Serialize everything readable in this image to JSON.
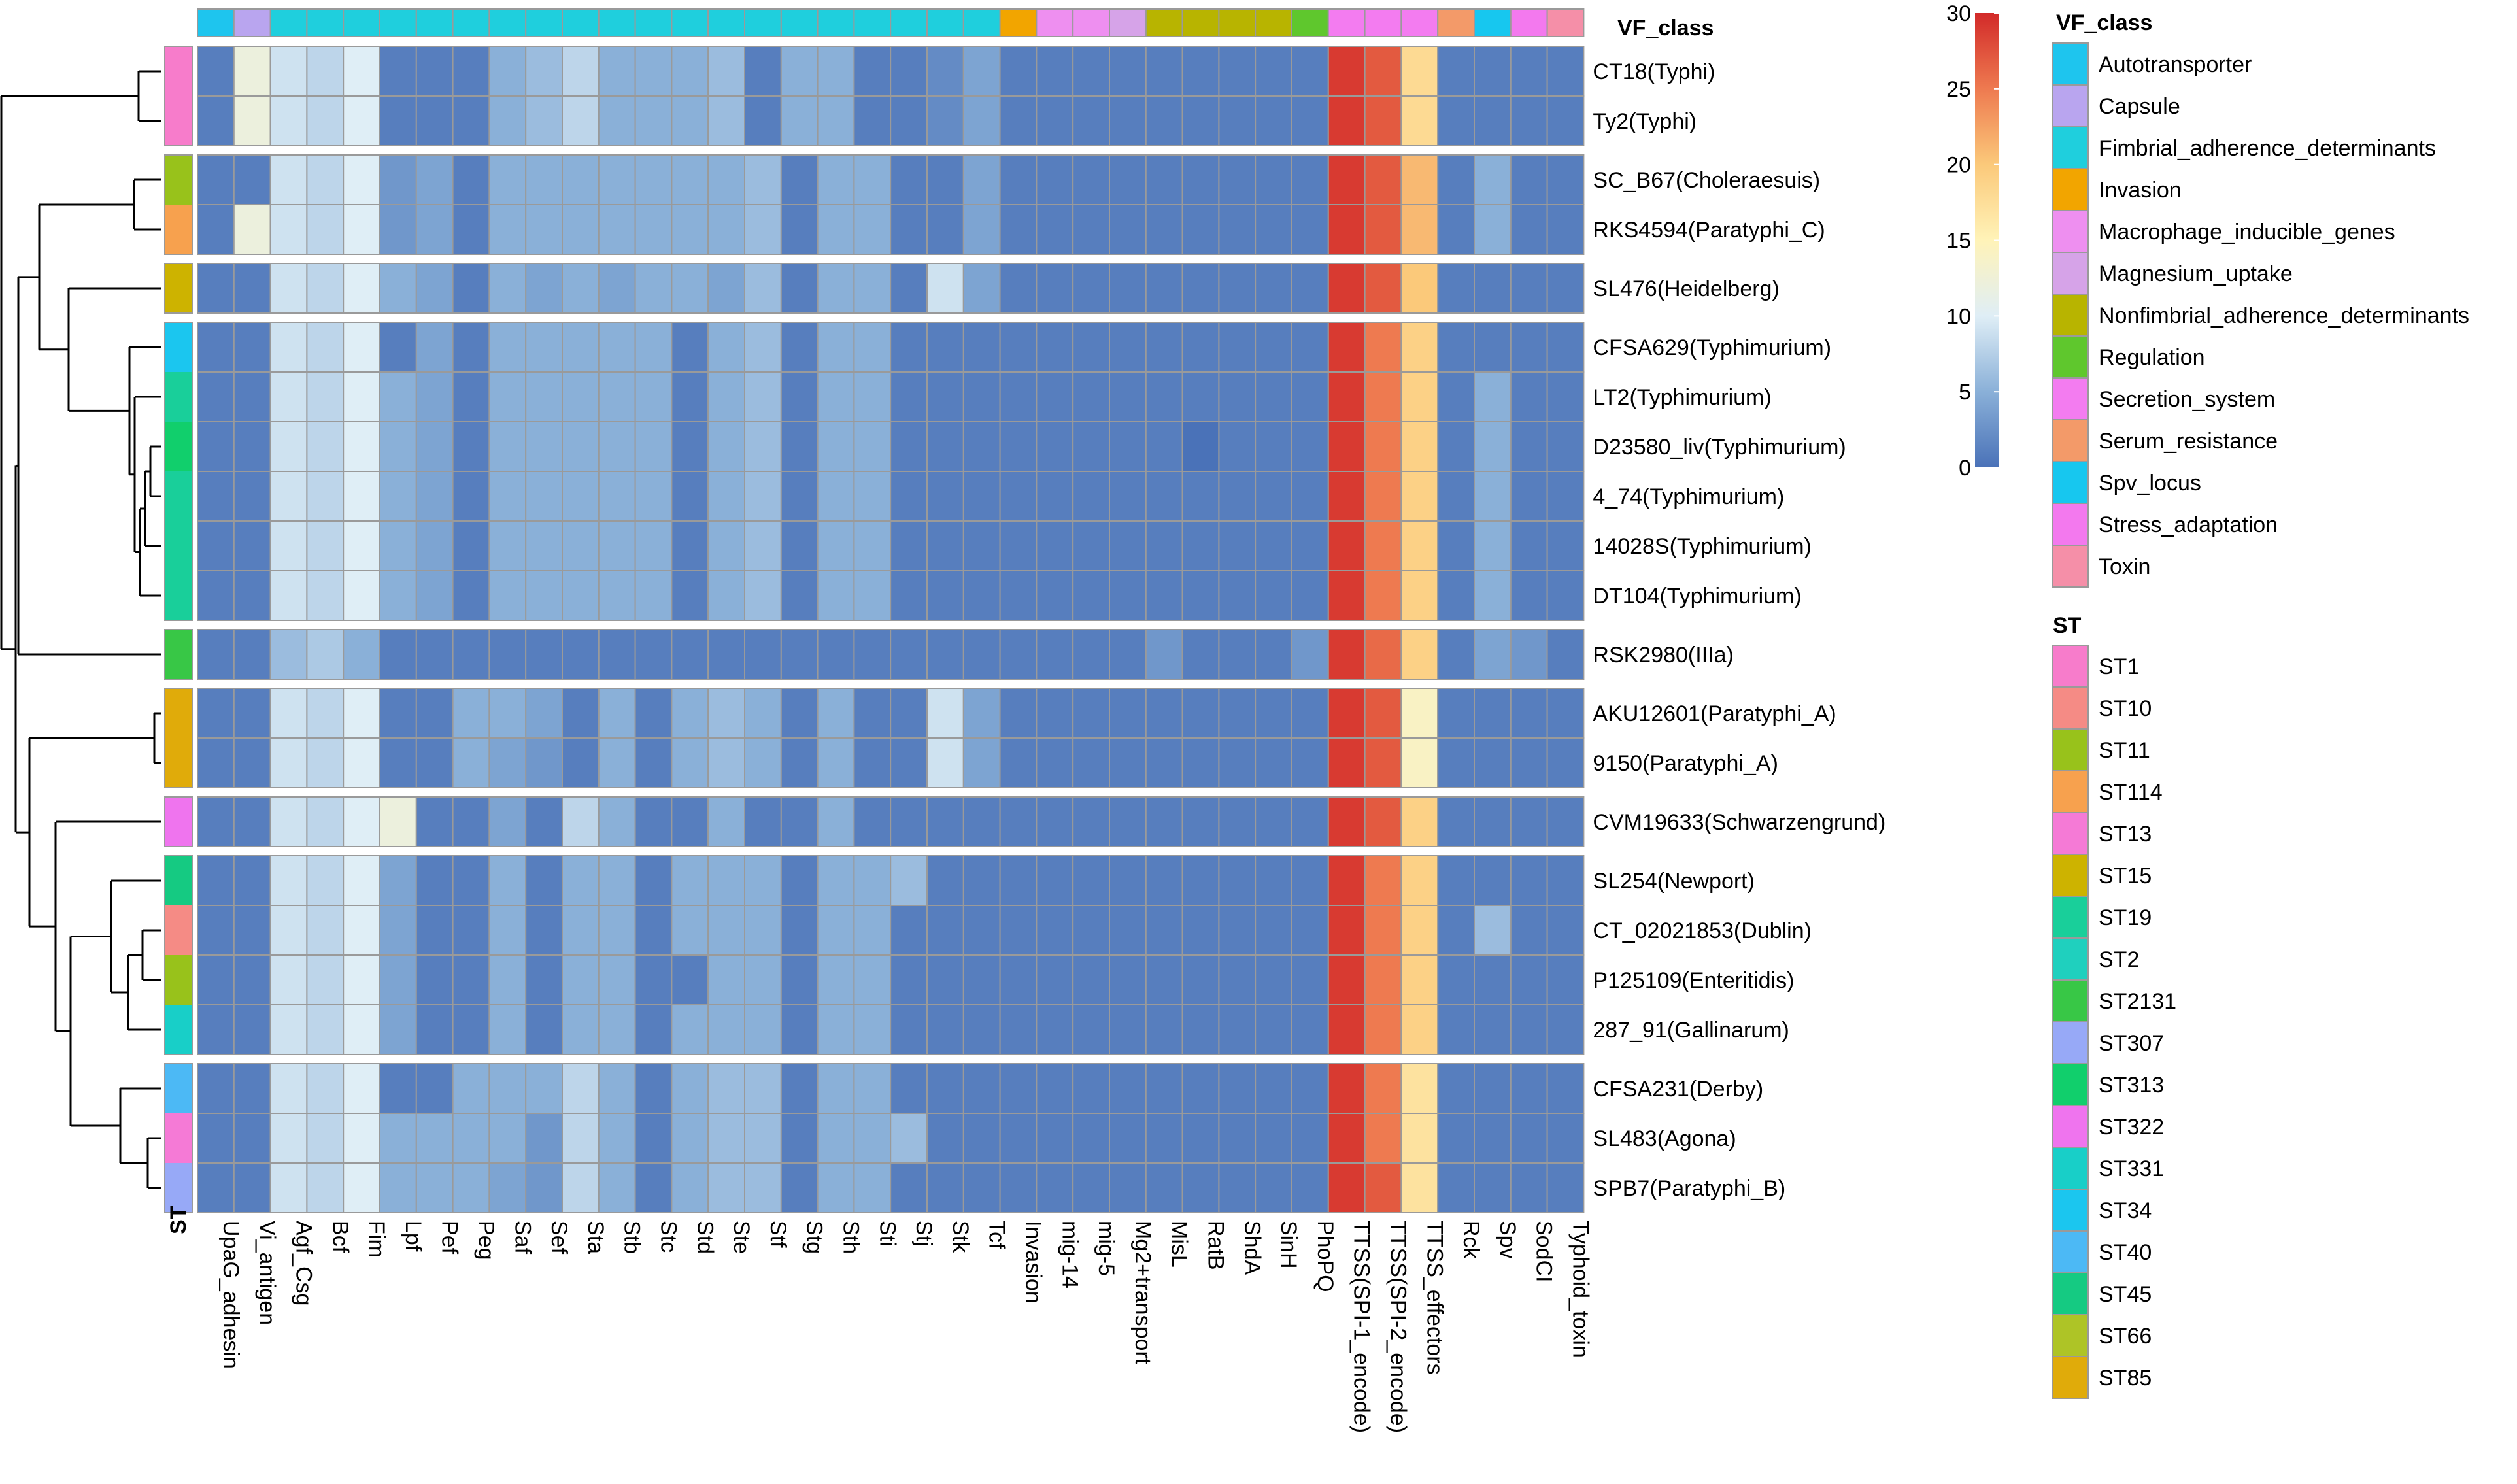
{
  "chart_data": {
    "type": "heatmap",
    "title": "",
    "color_scale": {
      "min": 0,
      "max": 30,
      "ticks": [
        "0",
        "5",
        "10",
        "15",
        "20",
        "25",
        "30"
      ],
      "stops": [
        {
          "value": 0,
          "color": "#4a72b8"
        },
        {
          "value": 5,
          "color": "#8ab0d8"
        },
        {
          "value": 10,
          "color": "#dfeef6"
        },
        {
          "value": 15,
          "color": "#fff3b8"
        },
        {
          "value": 20,
          "color": "#fbc97a"
        },
        {
          "value": 25,
          "color": "#ee7a50"
        },
        {
          "value": 30,
          "color": "#d22a29"
        }
      ]
    },
    "columns": [
      "UpaG_adhesin",
      "Vi_antigen",
      "Agf_Csg",
      "Bcf",
      "Fim",
      "Lpf",
      "Pef",
      "Peg",
      "Saf",
      "Sef",
      "Sta",
      "Stb",
      "Stc",
      "Std",
      "Ste",
      "Stf",
      "Stg",
      "Sth",
      "Sti",
      "Stj",
      "Stk",
      "Tcf",
      "Invasion",
      "mig-14",
      "mig-5",
      "Mg2+transport",
      "MisL",
      "RatB",
      "ShdA",
      "SinH",
      "PhoPQ",
      "TTSS(SPI-1_encode)",
      "TTSS(SPI-2_encode)",
      "TTSS_effectors",
      "Rck",
      "Spv",
      "SodCI",
      "Typhoid_toxin"
    ],
    "column_class": [
      "Autotransporter",
      "Capsule",
      "Fimbrial_adherence_determinants",
      "Fimbrial_adherence_determinants",
      "Fimbrial_adherence_determinants",
      "Fimbrial_adherence_determinants",
      "Fimbrial_adherence_determinants",
      "Fimbrial_adherence_determinants",
      "Fimbrial_adherence_determinants",
      "Fimbrial_adherence_determinants",
      "Fimbrial_adherence_determinants",
      "Fimbrial_adherence_determinants",
      "Fimbrial_adherence_determinants",
      "Fimbrial_adherence_determinants",
      "Fimbrial_adherence_determinants",
      "Fimbrial_adherence_determinants",
      "Fimbrial_adherence_determinants",
      "Fimbrial_adherence_determinants",
      "Fimbrial_adherence_determinants",
      "Fimbrial_adherence_determinants",
      "Fimbrial_adherence_determinants",
      "Fimbrial_adherence_determinants",
      "Invasion",
      "Macrophage_inducible_genes",
      "Macrophage_inducible_genes",
      "Magnesium_uptake",
      "Nonfimbrial_adherence_determinants",
      "Nonfimbrial_adherence_determinants",
      "Nonfimbrial_adherence_determinants",
      "Nonfimbrial_adherence_determinants",
      "Regulation",
      "Secretion_system",
      "Secretion_system",
      "Secretion_system",
      "Serum_resistance",
      "Spv_locus",
      "Stress_adaptation",
      "Toxin"
    ],
    "column_annotation_title": "VF_class",
    "row_annotation_title": "ST",
    "rows": [
      {
        "name": "CT18(Typhi)",
        "st": "ST1",
        "group": 1,
        "values": [
          1,
          12,
          9,
          8,
          10,
          1,
          1,
          1,
          5,
          6,
          8,
          5,
          5,
          5,
          6,
          1,
          5,
          5,
          1,
          1,
          2,
          4,
          1,
          1,
          1,
          1,
          1,
          1,
          1,
          1,
          1,
          29,
          27,
          18,
          1,
          1,
          1,
          1
        ]
      },
      {
        "name": "Ty2(Typhi)",
        "st": "ST1",
        "group": 1,
        "values": [
          1,
          12,
          9,
          8,
          10,
          1,
          1,
          1,
          5,
          6,
          8,
          5,
          5,
          5,
          6,
          1,
          5,
          5,
          1,
          1,
          2,
          4,
          1,
          1,
          1,
          1,
          1,
          1,
          1,
          1,
          1,
          29,
          27,
          18,
          1,
          1,
          1,
          1
        ]
      },
      {
        "name": "SC_B67(Choleraesuis)",
        "st": "ST11",
        "group": 2,
        "values": [
          1,
          1,
          9,
          8,
          10,
          3,
          4,
          1,
          5,
          5,
          5,
          5,
          5,
          5,
          5,
          6,
          1,
          5,
          5,
          1,
          1,
          4,
          1,
          1,
          1,
          1,
          1,
          1,
          1,
          1,
          1,
          29,
          27,
          21,
          1,
          5,
          1,
          1
        ]
      },
      {
        "name": "RKS4594(Paratyphi_C)",
        "st": "ST114",
        "group": 2,
        "values": [
          1,
          12,
          9,
          8,
          10,
          3,
          4,
          1,
          5,
          5,
          5,
          5,
          5,
          5,
          5,
          6,
          1,
          5,
          5,
          1,
          1,
          4,
          1,
          1,
          1,
          1,
          1,
          1,
          1,
          1,
          1,
          29,
          27,
          21,
          1,
          5,
          1,
          1
        ]
      },
      {
        "name": "SL476(Heidelberg)",
        "st": "ST15",
        "group": 3,
        "values": [
          1,
          1,
          9,
          8,
          10,
          5,
          4,
          1,
          5,
          4,
          5,
          4,
          5,
          5,
          4,
          6,
          1,
          5,
          5,
          1,
          9,
          4,
          1,
          1,
          1,
          1,
          1,
          1,
          1,
          1,
          1,
          29,
          27,
          20,
          1,
          1,
          1,
          1
        ]
      },
      {
        "name": "CFSA629(Typhimurium)",
        "st": "ST34",
        "group": 4,
        "values": [
          1,
          1,
          9,
          8,
          10,
          1,
          4,
          1,
          5,
          5,
          5,
          5,
          5,
          1,
          5,
          6,
          1,
          5,
          5,
          1,
          1,
          1,
          1,
          1,
          1,
          1,
          1,
          1,
          1,
          1,
          1,
          29,
          25,
          19,
          1,
          1,
          1,
          1
        ]
      },
      {
        "name": "LT2(Typhimurium)",
        "st": "ST19",
        "group": 4,
        "values": [
          1,
          1,
          9,
          8,
          10,
          5,
          4,
          1,
          5,
          5,
          5,
          5,
          5,
          1,
          5,
          6,
          1,
          5,
          5,
          1,
          1,
          1,
          1,
          1,
          1,
          1,
          1,
          1,
          1,
          1,
          1,
          29,
          25,
          19,
          1,
          5,
          1,
          1
        ]
      },
      {
        "name": "D23580_liv(Typhimurium)",
        "st": "ST313",
        "group": 4,
        "values": [
          1,
          1,
          9,
          8,
          10,
          5,
          4,
          1,
          5,
          5,
          5,
          5,
          5,
          1,
          5,
          6,
          1,
          5,
          5,
          1,
          1,
          1,
          1,
          1,
          1,
          1,
          1,
          0,
          1,
          1,
          1,
          29,
          25,
          19,
          1,
          5,
          1,
          1
        ]
      },
      {
        "name": "4_74(Typhimurium)",
        "st": "ST19",
        "group": 4,
        "values": [
          1,
          1,
          9,
          8,
          10,
          5,
          4,
          1,
          5,
          5,
          5,
          5,
          5,
          1,
          5,
          6,
          1,
          5,
          5,
          1,
          1,
          1,
          1,
          1,
          1,
          1,
          1,
          1,
          1,
          1,
          1,
          29,
          25,
          19,
          1,
          5,
          1,
          1
        ]
      },
      {
        "name": "14028S(Typhimurium)",
        "st": "ST19",
        "group": 4,
        "values": [
          1,
          1,
          9,
          8,
          10,
          5,
          4,
          1,
          5,
          5,
          5,
          5,
          5,
          1,
          5,
          6,
          1,
          5,
          5,
          1,
          1,
          1,
          1,
          1,
          1,
          1,
          1,
          1,
          1,
          1,
          1,
          29,
          25,
          19,
          1,
          5,
          1,
          1
        ]
      },
      {
        "name": "DT104(Typhimurium)",
        "st": "ST19",
        "group": 4,
        "values": [
          1,
          1,
          9,
          8,
          10,
          5,
          4,
          1,
          5,
          5,
          5,
          5,
          5,
          1,
          5,
          6,
          1,
          5,
          5,
          1,
          1,
          1,
          1,
          1,
          1,
          1,
          1,
          1,
          1,
          1,
          1,
          29,
          25,
          19,
          1,
          5,
          1,
          1
        ]
      },
      {
        "name": "RSK2980(IIIa)",
        "st": "ST2131",
        "group": 5,
        "values": [
          1,
          1,
          6,
          7,
          5,
          1,
          1,
          1,
          1,
          1,
          1,
          1,
          1,
          1,
          1,
          1,
          1,
          1,
          1,
          1,
          1,
          1,
          1,
          1,
          1,
          1,
          3,
          1,
          1,
          1,
          3,
          29,
          26,
          19,
          1,
          4,
          3,
          1
        ]
      },
      {
        "name": "AKU12601(Paratyphi_A)",
        "st": "ST85",
        "group": 6,
        "values": [
          1,
          1,
          9,
          8,
          10,
          1,
          1,
          5,
          5,
          4,
          1,
          5,
          1,
          5,
          6,
          5,
          1,
          5,
          1,
          1,
          9,
          4,
          1,
          1,
          1,
          1,
          1,
          1,
          1,
          1,
          1,
          29,
          27,
          14,
          1,
          1,
          1,
          1
        ]
      },
      {
        "name": "9150(Paratyphi_A)",
        "st": "ST85",
        "group": 6,
        "values": [
          1,
          1,
          9,
          8,
          10,
          1,
          1,
          5,
          4,
          3,
          1,
          5,
          1,
          5,
          6,
          5,
          1,
          5,
          1,
          1,
          9,
          4,
          1,
          1,
          1,
          1,
          1,
          1,
          1,
          1,
          1,
          29,
          27,
          14,
          1,
          1,
          1,
          1
        ]
      },
      {
        "name": "CVM19633(Schwarzengrund)",
        "st": "ST322",
        "group": 7,
        "values": [
          1,
          1,
          9,
          8,
          10,
          12,
          1,
          1,
          4,
          1,
          8,
          5,
          1,
          1,
          5,
          1,
          1,
          5,
          1,
          1,
          1,
          1,
          1,
          1,
          1,
          1,
          1,
          1,
          1,
          1,
          1,
          29,
          27,
          19,
          1,
          1,
          1,
          1
        ]
      },
      {
        "name": "SL254(Newport)",
        "st": "ST45",
        "group": 8,
        "values": [
          1,
          1,
          9,
          8,
          10,
          4,
          1,
          1,
          5,
          1,
          5,
          5,
          1,
          5,
          5,
          5,
          1,
          5,
          5,
          6,
          1,
          1,
          1,
          1,
          1,
          1,
          1,
          1,
          1,
          1,
          1,
          29,
          25,
          19,
          1,
          1,
          1,
          1
        ]
      },
      {
        "name": "CT_02021853(Dublin)",
        "st": "ST10",
        "group": 8,
        "values": [
          1,
          1,
          9,
          8,
          10,
          4,
          1,
          1,
          5,
          1,
          5,
          5,
          1,
          5,
          5,
          5,
          1,
          5,
          5,
          1,
          1,
          1,
          1,
          1,
          1,
          1,
          1,
          1,
          1,
          1,
          1,
          29,
          25,
          19,
          1,
          6,
          1,
          1
        ]
      },
      {
        "name": "P125109(Enteritidis)",
        "st": "ST11",
        "group": 8,
        "values": [
          1,
          1,
          9,
          8,
          10,
          4,
          1,
          1,
          5,
          1,
          5,
          5,
          1,
          1,
          5,
          5,
          1,
          5,
          5,
          1,
          1,
          1,
          1,
          1,
          1,
          1,
          1,
          1,
          1,
          1,
          1,
          29,
          25,
          19,
          1,
          1,
          1,
          1
        ]
      },
      {
        "name": "287_91(Gallinarum)",
        "st": "ST331",
        "group": 8,
        "values": [
          1,
          1,
          9,
          8,
          10,
          4,
          1,
          1,
          5,
          1,
          5,
          5,
          1,
          5,
          5,
          5,
          1,
          5,
          5,
          1,
          1,
          1,
          1,
          1,
          1,
          1,
          1,
          1,
          1,
          1,
          1,
          29,
          25,
          19,
          1,
          1,
          1,
          1
        ]
      },
      {
        "name": "CFSA231(Derby)",
        "st": "ST40",
        "group": 9,
        "values": [
          1,
          1,
          9,
          8,
          10,
          1,
          1,
          5,
          5,
          5,
          8,
          5,
          1,
          5,
          6,
          6,
          1,
          5,
          5,
          1,
          1,
          1,
          1,
          1,
          1,
          1,
          1,
          1,
          1,
          1,
          1,
          29,
          25,
          17,
          1,
          1,
          1,
          1
        ]
      },
      {
        "name": "SL483(Agona)",
        "st": "ST13",
        "group": 9,
        "values": [
          1,
          1,
          9,
          8,
          10,
          5,
          5,
          5,
          5,
          3,
          8,
          5,
          1,
          5,
          6,
          6,
          1,
          5,
          5,
          6,
          1,
          1,
          1,
          1,
          1,
          1,
          1,
          1,
          1,
          1,
          1,
          29,
          25,
          17,
          1,
          1,
          1,
          1
        ]
      },
      {
        "name": "SPB7(Paratyphi_B)",
        "st": "ST307",
        "group": 9,
        "values": [
          1,
          1,
          9,
          8,
          10,
          5,
          5,
          5,
          4,
          3,
          8,
          5,
          1,
          5,
          6,
          6,
          1,
          5,
          5,
          1,
          1,
          1,
          1,
          1,
          1,
          1,
          1,
          1,
          1,
          1,
          1,
          29,
          27,
          17,
          1,
          1,
          1,
          1
        ]
      }
    ],
    "vf_class_legend": [
      {
        "label": "Autotransporter",
        "color": "#1ec5ee"
      },
      {
        "label": "Capsule",
        "color": "#b9a5ef"
      },
      {
        "label": "Fimbrial_adherence_determinants",
        "color": "#1fcfdd"
      },
      {
        "label": "Invasion",
        "color": "#f2a500"
      },
      {
        "label": "Macrophage_inducible_genes",
        "color": "#ee8ff0"
      },
      {
        "label": "Magnesium_uptake",
        "color": "#d6a3e8"
      },
      {
        "label": "Nonfimbrial_adherence_determinants",
        "color": "#b8b400"
      },
      {
        "label": "Regulation",
        "color": "#5fc72d"
      },
      {
        "label": "Secretion_system",
        "color": "#f37cf0"
      },
      {
        "label": "Serum_resistance",
        "color": "#f39a69"
      },
      {
        "label": "Spv_locus",
        "color": "#17c7ef"
      },
      {
        "label": "Stress_adaptation",
        "color": "#f379ee"
      },
      {
        "label": "Toxin",
        "color": "#f58fa8"
      }
    ],
    "st_legend": [
      {
        "label": "ST1",
        "color": "#f77ccb"
      },
      {
        "label": "ST10",
        "color": "#f58b85"
      },
      {
        "label": "ST11",
        "color": "#98c21b"
      },
      {
        "label": "ST114",
        "color": "#f7a14e"
      },
      {
        "label": "ST13",
        "color": "#f57ad6"
      },
      {
        "label": "ST15",
        "color": "#cdb300"
      },
      {
        "label": "ST19",
        "color": "#19cf9a"
      },
      {
        "label": "ST2",
        "color": "#1fd0be"
      },
      {
        "label": "ST2131",
        "color": "#38c746"
      },
      {
        "label": "ST307",
        "color": "#97a9f7"
      },
      {
        "label": "ST313",
        "color": "#11cf6c"
      },
      {
        "label": "ST322",
        "color": "#ef74ee"
      },
      {
        "label": "ST331",
        "color": "#18cfc8"
      },
      {
        "label": "ST34",
        "color": "#1bc6ef"
      },
      {
        "label": "ST40",
        "color": "#4cb9f5"
      },
      {
        "label": "ST45",
        "color": "#15ca82"
      },
      {
        "label": "ST66",
        "color": "#aec426"
      },
      {
        "label": "ST85",
        "color": "#e0ab0a"
      }
    ]
  }
}
